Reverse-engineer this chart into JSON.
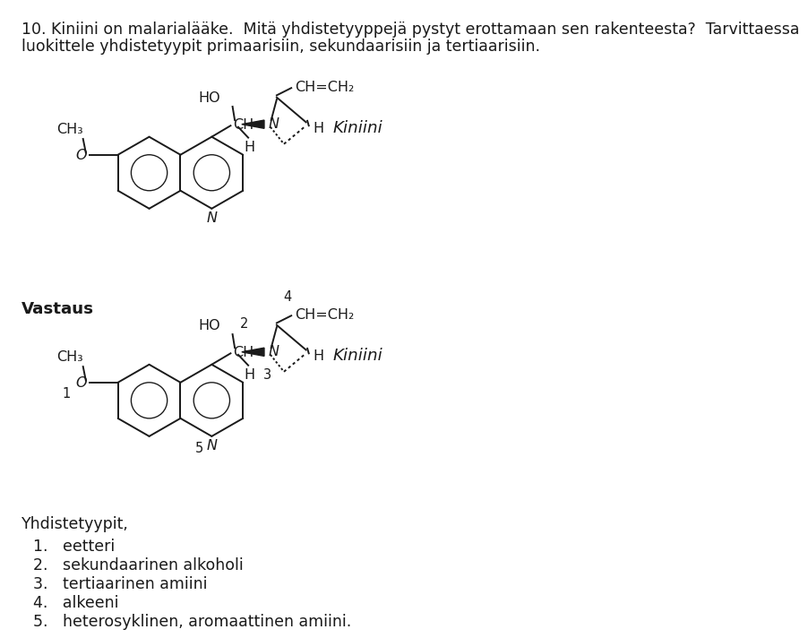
{
  "title_line1": "10. Kiniini on malarialääke.  Mitä yhdistetyyppejä pystyt erottamaan sen rakenteesta?  Tarvittaessa",
  "title_line2": "luokittele yhdistetyypit primaarisiin, sekundaarisiin ja tertiaarisiin.",
  "vastaus_label": "Vastaus",
  "yhdistetyypit_label": "Yhdistetyypit,",
  "numbered_list": [
    "1.   eetteri",
    "2.   sekundaarinen alkoholi",
    "3.   tertiaarinen amiini",
    "4.   alkeeni",
    "5.   heterosyklinen, aromaattinen amiini."
  ],
  "kiniini_label": "Kiniini",
  "background_color": "#ffffff",
  "text_color": "#1a1a1a",
  "font_size_title": 12.5,
  "font_size_body": 12.5,
  "font_size_chem": 11.5,
  "font_size_num": 10.5
}
